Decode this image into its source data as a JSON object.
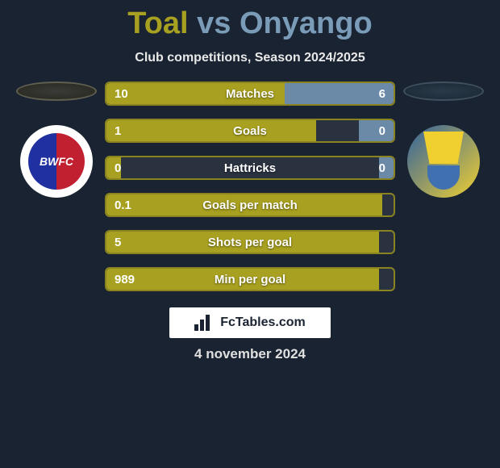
{
  "header": {
    "player1": "Toal",
    "vs": "vs",
    "player2": "Onyango",
    "subtitle": "Club competitions, Season 2024/2025"
  },
  "colors": {
    "player1_accent": "#a8a020",
    "player2_accent": "#6a8aa8",
    "title_player1": "#a8a020",
    "title_player2": "#7a9cb8",
    "background": "#1a2332",
    "bar_border": "#8a8420",
    "bar_background": "#2a3240"
  },
  "crests": {
    "left_text": "BWFC"
  },
  "stats": [
    {
      "label": "Matches",
      "left_value": "10",
      "right_value": "6",
      "left_pct": 62,
      "right_pct": 38
    },
    {
      "label": "Goals",
      "left_value": "1",
      "right_value": "0",
      "left_pct": 73,
      "right_pct": 12
    },
    {
      "label": "Hattricks",
      "left_value": "0",
      "right_value": "0",
      "left_pct": 5,
      "right_pct": 5
    },
    {
      "label": "Goals per match",
      "left_value": "0.1",
      "right_value": "",
      "left_pct": 96,
      "right_pct": 0
    },
    {
      "label": "Shots per goal",
      "left_value": "5",
      "right_value": "",
      "left_pct": 95,
      "right_pct": 0
    },
    {
      "label": "Min per goal",
      "left_value": "989",
      "right_value": "",
      "left_pct": 95,
      "right_pct": 0
    }
  ],
  "footer": {
    "logo_text": "FcTables.com",
    "date": "4 november 2024"
  }
}
